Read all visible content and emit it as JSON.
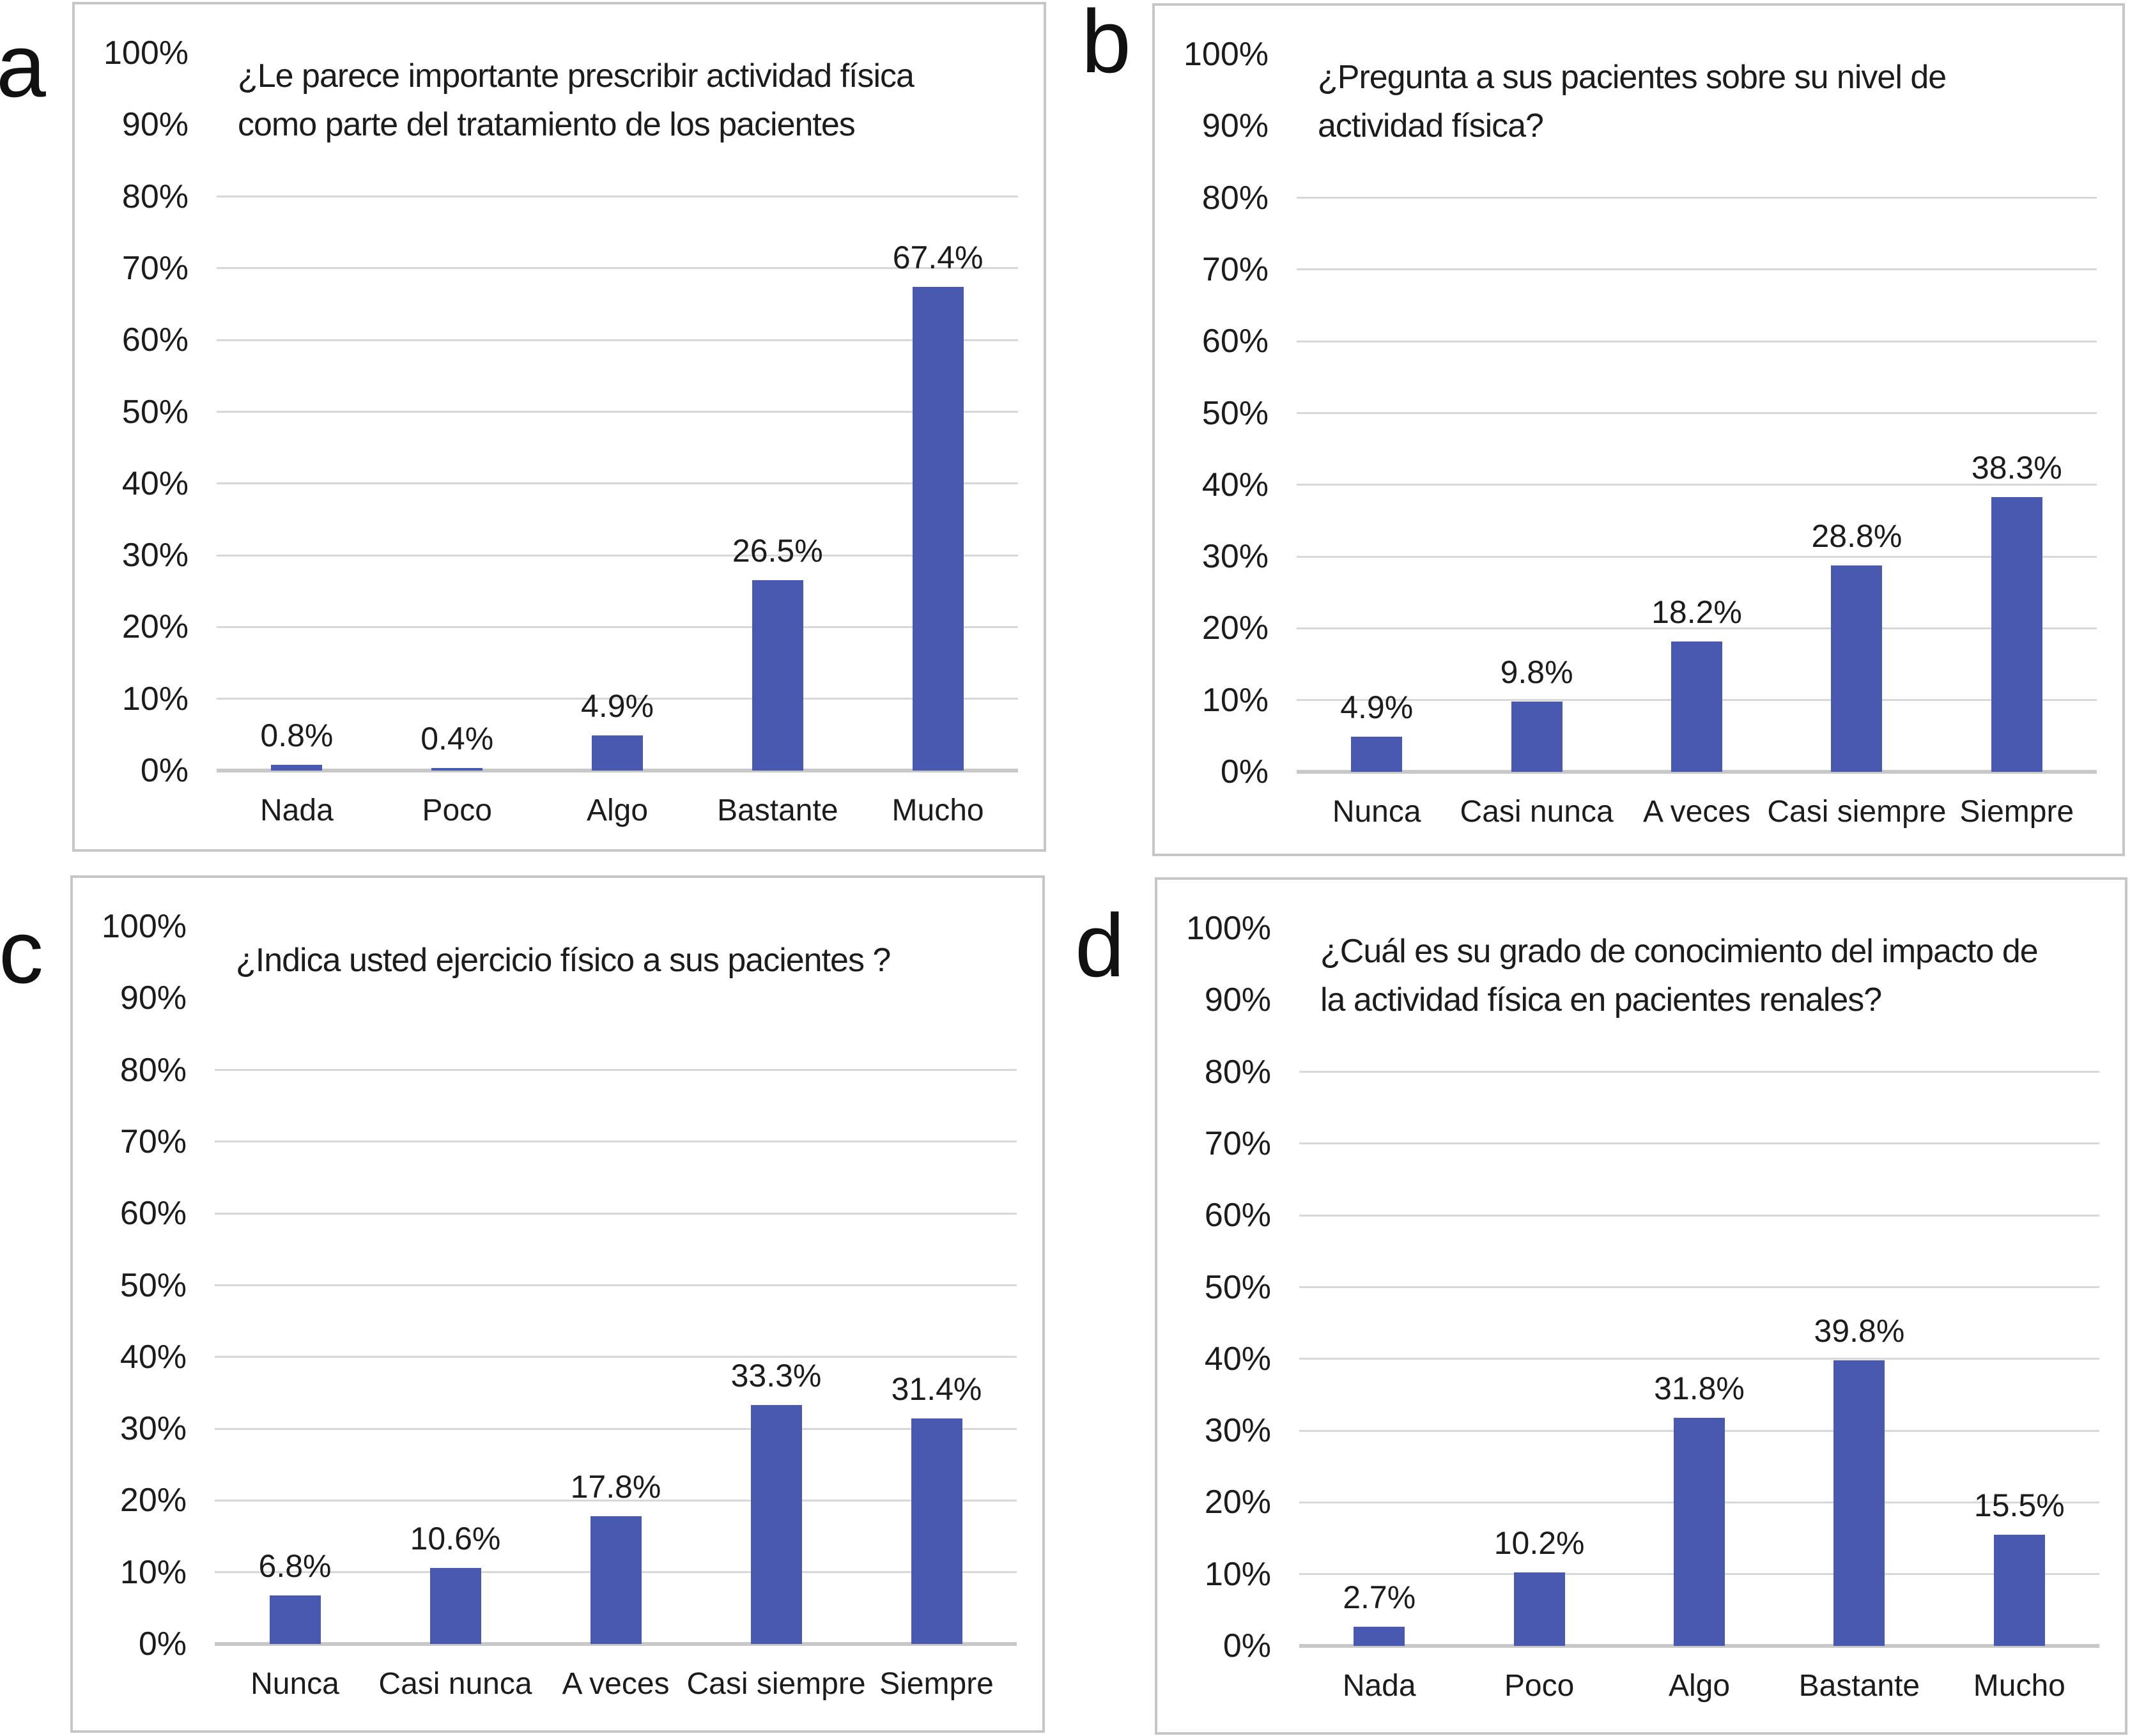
{
  "figure": {
    "background": "#ffffff",
    "bar_color": "#4A59B0",
    "gridline_color": "#D8D8D8",
    "axis_line_color": "#C8C8C8",
    "panel_border_color": "#C6C6C6",
    "text_color": "#1C1C1C"
  },
  "y_axis_tick_labels": [
    "100%",
    "90%",
    "80%",
    "70%",
    "60%",
    "50%",
    "40%",
    "30%",
    "20%",
    "10%",
    "0%"
  ],
  "chart_data": [
    {
      "panel": "a",
      "type": "bar",
      "title": "¿Le parece importante prescribir actividad física como parte del tratamiento de los pacientes",
      "title_lines": [
        "¿Le parece importante prescribir actividad física",
        "como parte del tratamiento de los pacientes"
      ],
      "categories": [
        "Nada",
        "Poco",
        "Algo",
        "Bastante",
        "Mucho"
      ],
      "values": [
        0.8,
        0.4,
        4.9,
        26.5,
        67.4
      ],
      "value_labels": [
        "0.8%",
        "0.4%",
        "4.9%",
        "26.5%",
        "67.4%"
      ],
      "xlabel": "",
      "ylabel": "",
      "ylim": [
        0,
        100
      ],
      "ytick_step": 10,
      "grid": true,
      "legend": null
    },
    {
      "panel": "b",
      "type": "bar",
      "title": "¿Pregunta a sus pacientes sobre su nivel de actividad física?",
      "title_lines": [
        "¿Pregunta a sus pacientes sobre su nivel de",
        "actividad física?"
      ],
      "categories": [
        "Nunca",
        "Casi nunca",
        "A veces",
        "Casi siempre",
        "Siempre"
      ],
      "values": [
        4.9,
        9.8,
        18.2,
        28.8,
        38.3
      ],
      "value_labels": [
        "4.9%",
        "9.8%",
        "18.2%",
        "28.8%",
        "38.3%"
      ],
      "xlabel": "",
      "ylabel": "",
      "ylim": [
        0,
        100
      ],
      "ytick_step": 10,
      "grid": true,
      "legend": null
    },
    {
      "panel": "c",
      "type": "bar",
      "title": "¿Indica usted ejercicio físico a sus pacientes ?",
      "title_lines": [
        "¿Indica usted ejercicio físico a sus pacientes ?"
      ],
      "categories": [
        "Nunca",
        "Casi nunca",
        "A veces",
        "Casi siempre",
        "Siempre"
      ],
      "values": [
        6.8,
        10.6,
        17.8,
        33.3,
        31.4
      ],
      "value_labels": [
        "6.8%",
        "10.6%",
        "17.8%",
        "33.3%",
        "31.4%"
      ],
      "xlabel": "",
      "ylabel": "",
      "ylim": [
        0,
        100
      ],
      "ytick_step": 10,
      "grid": true,
      "legend": null
    },
    {
      "panel": "d",
      "type": "bar",
      "title": "¿Cuál es su grado de conocimiento del impacto de la actividad física en pacientes renales?",
      "title_lines": [
        "¿Cuál es su grado de conocimiento del impacto de",
        "la actividad física en pacientes renales?"
      ],
      "categories": [
        "Nada",
        "Poco",
        "Algo",
        "Bastante",
        "Mucho"
      ],
      "values": [
        2.7,
        10.2,
        31.8,
        39.8,
        15.5
      ],
      "value_labels": [
        "2.7%",
        "10.2%",
        "31.8%",
        "39.8%",
        "15.5%"
      ],
      "xlabel": "",
      "ylabel": "",
      "ylim": [
        0,
        100
      ],
      "ytick_step": 10,
      "grid": true,
      "legend": null
    }
  ]
}
